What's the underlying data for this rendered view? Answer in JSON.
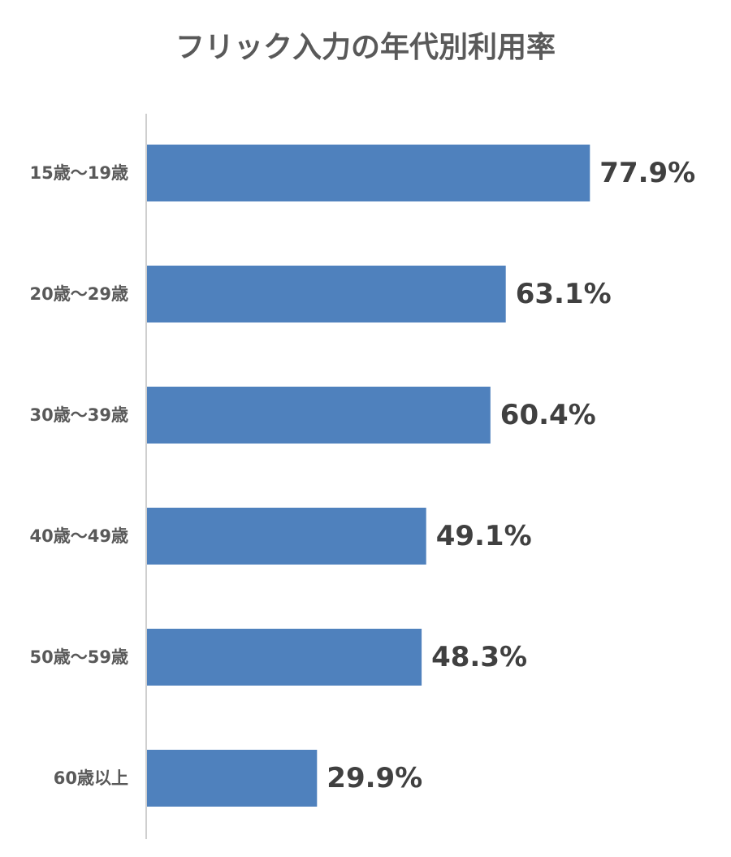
{
  "chart_data": {
    "type": "bar",
    "orientation": "horizontal",
    "title": "フリック入力の年代別利用率",
    "xlabel": "",
    "ylabel": "",
    "categories": [
      "15歳〜19歳",
      "20歳〜29歳",
      "30歳〜39歳",
      "40歳〜49歳",
      "50歳〜59歳",
      "60歳以上"
    ],
    "values": [
      77.9,
      63.1,
      60.4,
      49.1,
      48.3,
      29.9
    ],
    "value_labels": [
      "77.9%",
      "63.1%",
      "60.4%",
      "49.1%",
      "48.3%",
      "29.9%"
    ],
    "unit": "%",
    "xlim": [
      0,
      100
    ],
    "grid": false,
    "legend": "none",
    "bar_color": "#4f81bd",
    "axis_color": "#bfbfbf"
  }
}
